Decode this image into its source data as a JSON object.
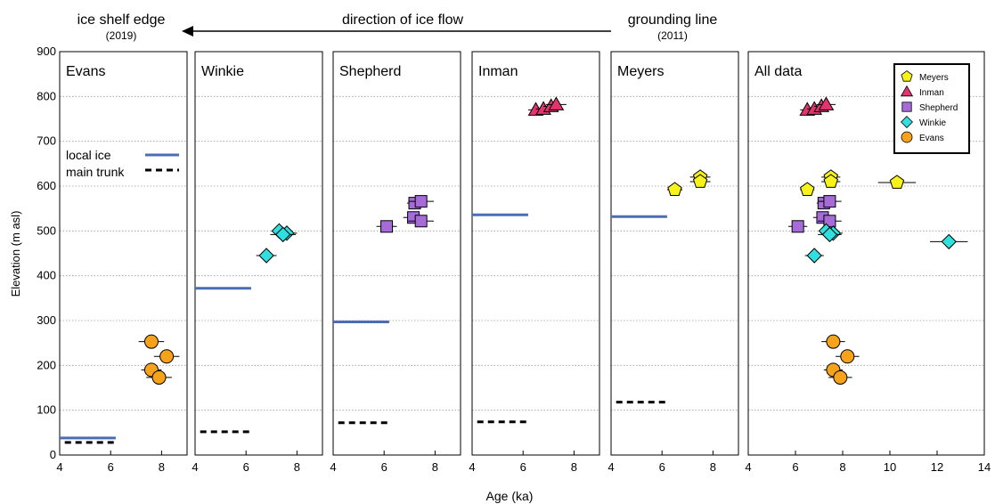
{
  "header": {
    "left_label": "ice shelf edge",
    "left_year": "(2019)",
    "center_label": "direction of ice flow",
    "right_label": "grounding line",
    "right_year": "(2011)"
  },
  "legend_lines": {
    "local_ice": "local ice",
    "main_trunk": "main trunk"
  },
  "colors": {
    "local_ice": "#4a6db5",
    "main_trunk": "#000000",
    "Meyers": "#f6f21a",
    "Inman": "#e2356f",
    "Shepherd": "#a66bd8",
    "Winkie": "#2fe0de",
    "Evans": "#f7a21b"
  },
  "chart_data": {
    "type": "scatter",
    "xlabel": "Age (ka)",
    "ylabel": "Elevation (m asl)",
    "ylim": [
      0,
      900
    ],
    "yticks": [
      "0",
      "100",
      "200",
      "300",
      "400",
      "500",
      "600",
      "700",
      "800",
      "900"
    ],
    "grid": "horizontal dotted",
    "legend_placement": "top-right of All data panel",
    "panels": [
      {
        "title": "Evans",
        "xlim": [
          4,
          9
        ],
        "xticks": [
          "4",
          "6",
          "8"
        ],
        "local_ice": 38,
        "main_trunk": 28,
        "points": [
          {
            "site": "Evans",
            "x": 7.6,
            "y": 253,
            "err": 0.5
          },
          {
            "site": "Evans",
            "x": 8.2,
            "y": 220,
            "err": 0.5
          },
          {
            "site": "Evans",
            "x": 7.6,
            "y": 190,
            "err": 0.4
          },
          {
            "site": "Evans",
            "x": 7.9,
            "y": 173,
            "err": 0.5
          }
        ]
      },
      {
        "title": "Winkie",
        "xlim": [
          4,
          9
        ],
        "xticks": [
          "4",
          "6",
          "8"
        ],
        "local_ice": 372,
        "main_trunk": 52,
        "points": [
          {
            "site": "Winkie",
            "x": 6.8,
            "y": 445,
            "err": 0.4
          },
          {
            "site": "Winkie",
            "x": 7.3,
            "y": 500,
            "err": 0.3
          },
          {
            "site": "Winkie",
            "x": 7.6,
            "y": 495,
            "err": 0.4
          },
          {
            "site": "Winkie",
            "x": 7.45,
            "y": 492,
            "err": 0.5
          }
        ]
      },
      {
        "title": "Shepherd",
        "xlim": [
          4,
          9
        ],
        "xticks": [
          "4",
          "6",
          "8"
        ],
        "local_ice": 297,
        "main_trunk": 72,
        "points": [
          {
            "site": "Shepherd",
            "x": 6.1,
            "y": 510,
            "err": 0.4
          },
          {
            "site": "Shepherd",
            "x": 7.2,
            "y": 562,
            "err": 0.3
          },
          {
            "site": "Shepherd",
            "x": 7.45,
            "y": 566,
            "err": 0.5
          },
          {
            "site": "Shepherd",
            "x": 7.15,
            "y": 530,
            "err": 0.4
          },
          {
            "site": "Shepherd",
            "x": 7.45,
            "y": 522,
            "err": 0.5
          }
        ]
      },
      {
        "title": "Inman",
        "xlim": [
          4,
          9
        ],
        "xticks": [
          "4",
          "6",
          "8"
        ],
        "local_ice": 536,
        "main_trunk": 74,
        "points": [
          {
            "site": "Inman",
            "x": 6.5,
            "y": 770,
            "err": 0.3
          },
          {
            "site": "Inman",
            "x": 6.8,
            "y": 772,
            "err": 0.3
          },
          {
            "site": "Inman",
            "x": 7.1,
            "y": 778,
            "err": 0.3
          },
          {
            "site": "Inman",
            "x": 7.3,
            "y": 782,
            "err": 0.4
          }
        ]
      },
      {
        "title": "Meyers",
        "xlim": [
          4,
          9
        ],
        "xticks": [
          "4",
          "6",
          "8"
        ],
        "local_ice": 532,
        "main_trunk": 118,
        "points": [
          {
            "site": "Meyers",
            "x": 6.5,
            "y": 592,
            "err": 0.3
          },
          {
            "site": "Meyers",
            "x": 7.5,
            "y": 620,
            "err": 0.4
          },
          {
            "site": "Meyers",
            "x": 7.5,
            "y": 610,
            "err": 0.4
          }
        ]
      },
      {
        "title": "All data",
        "xlim": [
          4,
          14
        ],
        "xticks": [
          "4",
          "6",
          "8",
          "10",
          "12",
          "14"
        ],
        "points": [
          {
            "site": "Meyers",
            "x": 6.5,
            "y": 592,
            "err": 0.3
          },
          {
            "site": "Meyers",
            "x": 7.5,
            "y": 620,
            "err": 0.4
          },
          {
            "site": "Meyers",
            "x": 7.5,
            "y": 610,
            "err": 0.4
          },
          {
            "site": "Meyers",
            "x": 10.3,
            "y": 608,
            "err": 0.8
          },
          {
            "site": "Inman",
            "x": 6.5,
            "y": 770,
            "err": 0.3
          },
          {
            "site": "Inman",
            "x": 6.8,
            "y": 772,
            "err": 0.3
          },
          {
            "site": "Inman",
            "x": 7.1,
            "y": 778,
            "err": 0.3
          },
          {
            "site": "Inman",
            "x": 7.3,
            "y": 782,
            "err": 0.4
          },
          {
            "site": "Shepherd",
            "x": 6.1,
            "y": 510,
            "err": 0.4
          },
          {
            "site": "Shepherd",
            "x": 7.2,
            "y": 562,
            "err": 0.3
          },
          {
            "site": "Shepherd",
            "x": 7.45,
            "y": 566,
            "err": 0.5
          },
          {
            "site": "Shepherd",
            "x": 7.15,
            "y": 530,
            "err": 0.4
          },
          {
            "site": "Shepherd",
            "x": 7.45,
            "y": 522,
            "err": 0.5
          },
          {
            "site": "Winkie",
            "x": 6.8,
            "y": 445,
            "err": 0.4
          },
          {
            "site": "Winkie",
            "x": 7.3,
            "y": 500,
            "err": 0.3
          },
          {
            "site": "Winkie",
            "x": 7.6,
            "y": 495,
            "err": 0.4
          },
          {
            "site": "Winkie",
            "x": 7.45,
            "y": 492,
            "err": 0.5
          },
          {
            "site": "Winkie",
            "x": 12.5,
            "y": 476,
            "err": 0.8
          },
          {
            "site": "Evans",
            "x": 7.6,
            "y": 253,
            "err": 0.5
          },
          {
            "site": "Evans",
            "x": 8.2,
            "y": 220,
            "err": 0.5
          },
          {
            "site": "Evans",
            "x": 7.6,
            "y": 190,
            "err": 0.4
          },
          {
            "site": "Evans",
            "x": 7.9,
            "y": 173,
            "err": 0.5
          }
        ],
        "legend": [
          "Meyers",
          "Inman",
          "Shepherd",
          "Winkie",
          "Evans"
        ]
      }
    ]
  }
}
